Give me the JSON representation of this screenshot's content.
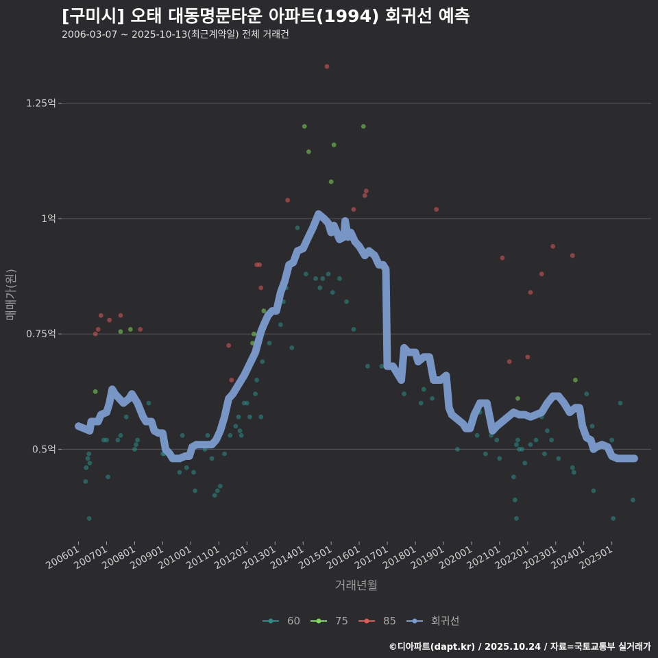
{
  "chart_data": {
    "type": "scatter",
    "title": "[구미시] 오태 대동명문타운 아파트(1994) 회귀선 예측",
    "subtitle": "2006-03-07 ~ 2025-10-13(최근계약일) 전체 거래건",
    "xlabel": "거래년월",
    "ylabel": "매매가(원)",
    "credit": "©디아파트(dapt.kr) / 2025.10.24 / 자료=국토교통부 실거래가",
    "ylim": [
      0.3,
      1.37
    ],
    "xlim": [
      2005.4,
      2026.4
    ],
    "y_ticks": [
      {
        "value": 0.5,
        "label": "0.5억"
      },
      {
        "value": 0.75,
        "label": "0.75억"
      },
      {
        "value": 1.0,
        "label": "1억"
      },
      {
        "value": 1.25,
        "label": "1.25억"
      }
    ],
    "x_ticks": [
      {
        "value": 2006,
        "label": "200601"
      },
      {
        "value": 2007,
        "label": "200701"
      },
      {
        "value": 2008,
        "label": "200801"
      },
      {
        "value": 2009,
        "label": "200901"
      },
      {
        "value": 2010,
        "label": "201001"
      },
      {
        "value": 2011,
        "label": "201101"
      },
      {
        "value": 2012,
        "label": "201201"
      },
      {
        "value": 2013,
        "label": "201301"
      },
      {
        "value": 2014,
        "label": "201401"
      },
      {
        "value": 2015,
        "label": "201501"
      },
      {
        "value": 2016,
        "label": "201601"
      },
      {
        "value": 2017,
        "label": "201701"
      },
      {
        "value": 2018,
        "label": "201801"
      },
      {
        "value": 2019,
        "label": "201901"
      },
      {
        "value": 2020,
        "label": "202001"
      },
      {
        "value": 2021,
        "label": "202101"
      },
      {
        "value": 2022,
        "label": "202201"
      },
      {
        "value": 2023,
        "label": "202301"
      },
      {
        "value": 2024,
        "label": "202401"
      },
      {
        "value": 2025,
        "label": "202501"
      }
    ],
    "legend": [
      {
        "name": "60",
        "color": "#2a8f8a"
      },
      {
        "name": "75",
        "color": "#7ed957"
      },
      {
        "name": "85",
        "color": "#e05a5a"
      },
      {
        "name": "회귀선",
        "color": "#7b9ccf"
      }
    ],
    "series": [
      {
        "name": "60",
        "color": "#2a8f8a",
        "points": [
          [
            2006.25,
            0.43
          ],
          [
            2006.27,
            0.46
          ],
          [
            2006.33,
            0.48
          ],
          [
            2006.37,
            0.49
          ],
          [
            2006.38,
            0.35
          ],
          [
            2006.4,
            0.47
          ],
          [
            2006.9,
            0.52
          ],
          [
            2007.0,
            0.52
          ],
          [
            2007.05,
            0.44
          ],
          [
            2007.4,
            0.52
          ],
          [
            2007.5,
            0.53
          ],
          [
            2007.7,
            0.57
          ],
          [
            2008.0,
            0.5
          ],
          [
            2008.05,
            0.51
          ],
          [
            2008.1,
            0.52
          ],
          [
            2008.5,
            0.6
          ],
          [
            2009.0,
            0.49
          ],
          [
            2009.05,
            0.49
          ],
          [
            2009.6,
            0.45
          ],
          [
            2009.7,
            0.53
          ],
          [
            2009.85,
            0.46
          ],
          [
            2010.1,
            0.45
          ],
          [
            2010.15,
            0.41
          ],
          [
            2010.5,
            0.5
          ],
          [
            2010.6,
            0.53
          ],
          [
            2010.75,
            0.48
          ],
          [
            2010.85,
            0.4
          ],
          [
            2010.95,
            0.41
          ],
          [
            2011.05,
            0.42
          ],
          [
            2011.2,
            0.49
          ],
          [
            2011.4,
            0.53
          ],
          [
            2011.6,
            0.55
          ],
          [
            2011.7,
            0.57
          ],
          [
            2011.75,
            0.54
          ],
          [
            2011.8,
            0.53
          ],
          [
            2011.9,
            0.6
          ],
          [
            2012.0,
            0.6
          ],
          [
            2012.1,
            0.57
          ],
          [
            2012.3,
            0.62
          ],
          [
            2012.35,
            0.65
          ],
          [
            2012.5,
            0.57
          ],
          [
            2012.55,
            0.69
          ],
          [
            2012.8,
            0.73
          ],
          [
            2013.2,
            0.77
          ],
          [
            2013.3,
            0.82
          ],
          [
            2013.4,
            0.85
          ],
          [
            2013.6,
            0.72
          ],
          [
            2013.8,
            0.98
          ],
          [
            2014.1,
            0.88
          ],
          [
            2014.45,
            0.87
          ],
          [
            2014.6,
            0.85
          ],
          [
            2014.7,
            0.87
          ],
          [
            2014.9,
            0.88
          ],
          [
            2015.05,
            0.84
          ],
          [
            2015.3,
            0.87
          ],
          [
            2015.55,
            0.82
          ],
          [
            2015.8,
            0.76
          ],
          [
            2016.3,
            0.68
          ],
          [
            2016.8,
            0.68
          ],
          [
            2017.6,
            0.62
          ],
          [
            2018.2,
            0.6
          ],
          [
            2018.3,
            0.63
          ],
          [
            2018.6,
            0.61
          ],
          [
            2019.2,
            0.58
          ],
          [
            2019.5,
            0.5
          ],
          [
            2019.7,
            0.55
          ],
          [
            2020.0,
            0.56
          ],
          [
            2020.2,
            0.53
          ],
          [
            2020.3,
            0.58
          ],
          [
            2020.5,
            0.49
          ],
          [
            2020.7,
            0.53
          ],
          [
            2020.9,
            0.52
          ],
          [
            2021.0,
            0.48
          ],
          [
            2021.5,
            0.44
          ],
          [
            2021.55,
            0.39
          ],
          [
            2021.6,
            0.35
          ],
          [
            2021.6,
            0.51
          ],
          [
            2021.65,
            0.52
          ],
          [
            2021.7,
            0.5
          ],
          [
            2021.8,
            0.5
          ],
          [
            2021.9,
            0.47
          ],
          [
            2022.1,
            0.51
          ],
          [
            2022.3,
            0.52
          ],
          [
            2022.5,
            0.57
          ],
          [
            2022.6,
            0.49
          ],
          [
            2022.7,
            0.54
          ],
          [
            2022.85,
            0.52
          ],
          [
            2023.1,
            0.48
          ],
          [
            2023.4,
            0.59
          ],
          [
            2023.6,
            0.46
          ],
          [
            2023.65,
            0.45
          ],
          [
            2024.1,
            0.62
          ],
          [
            2024.15,
            0.52
          ],
          [
            2024.3,
            0.55
          ],
          [
            2024.35,
            0.41
          ],
          [
            2025.0,
            0.52
          ],
          [
            2025.05,
            0.35
          ],
          [
            2025.3,
            0.6
          ],
          [
            2025.75,
            0.39
          ]
        ]
      },
      {
        "name": "75",
        "color": "#7ed957",
        "points": [
          [
            2006.6,
            0.625
          ],
          [
            2007.5,
            0.755
          ],
          [
            2007.85,
            0.76
          ],
          [
            2012.2,
            0.73
          ],
          [
            2012.25,
            0.75
          ],
          [
            2012.6,
            0.8
          ],
          [
            2014.05,
            1.2
          ],
          [
            2014.2,
            1.145
          ],
          [
            2015.0,
            1.08
          ],
          [
            2015.1,
            1.16
          ],
          [
            2016.15,
            1.2
          ],
          [
            2021.65,
            0.61
          ],
          [
            2023.7,
            0.65
          ]
        ]
      },
      {
        "name": "85",
        "color": "#e05a5a",
        "points": [
          [
            2006.6,
            0.75
          ],
          [
            2006.7,
            0.76
          ],
          [
            2006.8,
            0.79
          ],
          [
            2007.1,
            0.78
          ],
          [
            2007.5,
            0.79
          ],
          [
            2008.2,
            0.76
          ],
          [
            2011.35,
            0.725
          ],
          [
            2011.45,
            0.65
          ],
          [
            2012.25,
            0.71
          ],
          [
            2012.35,
            0.9
          ],
          [
            2012.45,
            0.9
          ],
          [
            2012.5,
            0.85
          ],
          [
            2013.45,
            1.04
          ],
          [
            2014.85,
            1.33
          ],
          [
            2015.8,
            1.02
          ],
          [
            2016.2,
            1.05
          ],
          [
            2016.25,
            1.06
          ],
          [
            2018.75,
            1.02
          ],
          [
            2021.1,
            0.915
          ],
          [
            2021.35,
            0.69
          ],
          [
            2022.0,
            0.7
          ],
          [
            2022.1,
            0.84
          ],
          [
            2022.5,
            0.88
          ],
          [
            2022.9,
            0.94
          ],
          [
            2023.6,
            0.92
          ]
        ]
      }
    ],
    "regression": {
      "name": "회귀선",
      "color": "#7b9ccf",
      "points": [
        [
          2006.0,
          0.55
        ],
        [
          2006.2,
          0.545
        ],
        [
          2006.4,
          0.54
        ],
        [
          2006.45,
          0.56
        ],
        [
          2006.7,
          0.56
        ],
        [
          2006.8,
          0.575
        ],
        [
          2007.0,
          0.58
        ],
        [
          2007.1,
          0.6
        ],
        [
          2007.2,
          0.63
        ],
        [
          2007.3,
          0.62
        ],
        [
          2007.6,
          0.6
        ],
        [
          2007.8,
          0.61
        ],
        [
          2007.9,
          0.62
        ],
        [
          2008.1,
          0.6
        ],
        [
          2008.3,
          0.57
        ],
        [
          2008.4,
          0.56
        ],
        [
          2008.6,
          0.56
        ],
        [
          2008.7,
          0.54
        ],
        [
          2008.85,
          0.535
        ],
        [
          2009.0,
          0.535
        ],
        [
          2009.1,
          0.5
        ],
        [
          2009.25,
          0.49
        ],
        [
          2009.35,
          0.48
        ],
        [
          2009.6,
          0.48
        ],
        [
          2009.8,
          0.485
        ],
        [
          2009.95,
          0.485
        ],
        [
          2010.05,
          0.505
        ],
        [
          2010.2,
          0.51
        ],
        [
          2010.5,
          0.51
        ],
        [
          2010.75,
          0.51
        ],
        [
          2010.9,
          0.52
        ],
        [
          2011.05,
          0.54
        ],
        [
          2011.2,
          0.57
        ],
        [
          2011.35,
          0.61
        ],
        [
          2011.5,
          0.62
        ],
        [
          2011.7,
          0.64
        ],
        [
          2011.9,
          0.66
        ],
        [
          2012.1,
          0.685
        ],
        [
          2012.3,
          0.71
        ],
        [
          2012.5,
          0.755
        ],
        [
          2012.6,
          0.77
        ],
        [
          2012.75,
          0.79
        ],
        [
          2012.9,
          0.8
        ],
        [
          2013.05,
          0.8
        ],
        [
          2013.2,
          0.84
        ],
        [
          2013.35,
          0.865
        ],
        [
          2013.5,
          0.9
        ],
        [
          2013.65,
          0.905
        ],
        [
          2013.8,
          0.93
        ],
        [
          2014.0,
          0.935
        ],
        [
          2014.15,
          0.955
        ],
        [
          2014.35,
          0.98
        ],
        [
          2014.55,
          1.01
        ],
        [
          2014.75,
          1.0
        ],
        [
          2014.9,
          0.99
        ],
        [
          2015.0,
          0.97
        ],
        [
          2015.1,
          0.985
        ],
        [
          2015.3,
          0.955
        ],
        [
          2015.45,
          0.96
        ],
        [
          2015.5,
          0.995
        ],
        [
          2015.6,
          0.96
        ],
        [
          2015.7,
          0.97
        ],
        [
          2015.85,
          0.95
        ],
        [
          2016.0,
          0.94
        ],
        [
          2016.2,
          0.92
        ],
        [
          2016.35,
          0.93
        ],
        [
          2016.55,
          0.92
        ],
        [
          2016.7,
          0.9
        ],
        [
          2016.85,
          0.9
        ],
        [
          2016.95,
          0.89
        ],
        [
          2017.0,
          0.68
        ],
        [
          2017.2,
          0.68
        ],
        [
          2017.4,
          0.66
        ],
        [
          2017.5,
          0.65
        ],
        [
          2017.6,
          0.72
        ],
        [
          2017.75,
          0.71
        ],
        [
          2018.0,
          0.71
        ],
        [
          2018.1,
          0.69
        ],
        [
          2018.3,
          0.7
        ],
        [
          2018.5,
          0.7
        ],
        [
          2018.65,
          0.65
        ],
        [
          2018.9,
          0.65
        ],
        [
          2019.1,
          0.66
        ],
        [
          2019.2,
          0.59
        ],
        [
          2019.3,
          0.575
        ],
        [
          2019.5,
          0.565
        ],
        [
          2019.7,
          0.555
        ],
        [
          2019.8,
          0.545
        ],
        [
          2019.95,
          0.545
        ],
        [
          2020.1,
          0.575
        ],
        [
          2020.3,
          0.6
        ],
        [
          2020.55,
          0.6
        ],
        [
          2020.65,
          0.57
        ],
        [
          2020.75,
          0.54
        ],
        [
          2020.9,
          0.55
        ],
        [
          2021.1,
          0.56
        ],
        [
          2021.3,
          0.57
        ],
        [
          2021.5,
          0.58
        ],
        [
          2021.7,
          0.575
        ],
        [
          2021.9,
          0.575
        ],
        [
          2022.1,
          0.57
        ],
        [
          2022.3,
          0.575
        ],
        [
          2022.5,
          0.58
        ],
        [
          2022.7,
          0.6
        ],
        [
          2022.9,
          0.615
        ],
        [
          2023.1,
          0.615
        ],
        [
          2023.3,
          0.6
        ],
        [
          2023.5,
          0.58
        ],
        [
          2023.7,
          0.59
        ],
        [
          2023.85,
          0.59
        ],
        [
          2023.95,
          0.55
        ],
        [
          2024.1,
          0.525
        ],
        [
          2024.25,
          0.52
        ],
        [
          2024.35,
          0.5
        ],
        [
          2024.45,
          0.505
        ],
        [
          2024.65,
          0.51
        ],
        [
          2024.85,
          0.505
        ],
        [
          2025.0,
          0.485
        ],
        [
          2025.2,
          0.48
        ],
        [
          2025.5,
          0.48
        ],
        [
          2025.8,
          0.48
        ]
      ]
    }
  }
}
